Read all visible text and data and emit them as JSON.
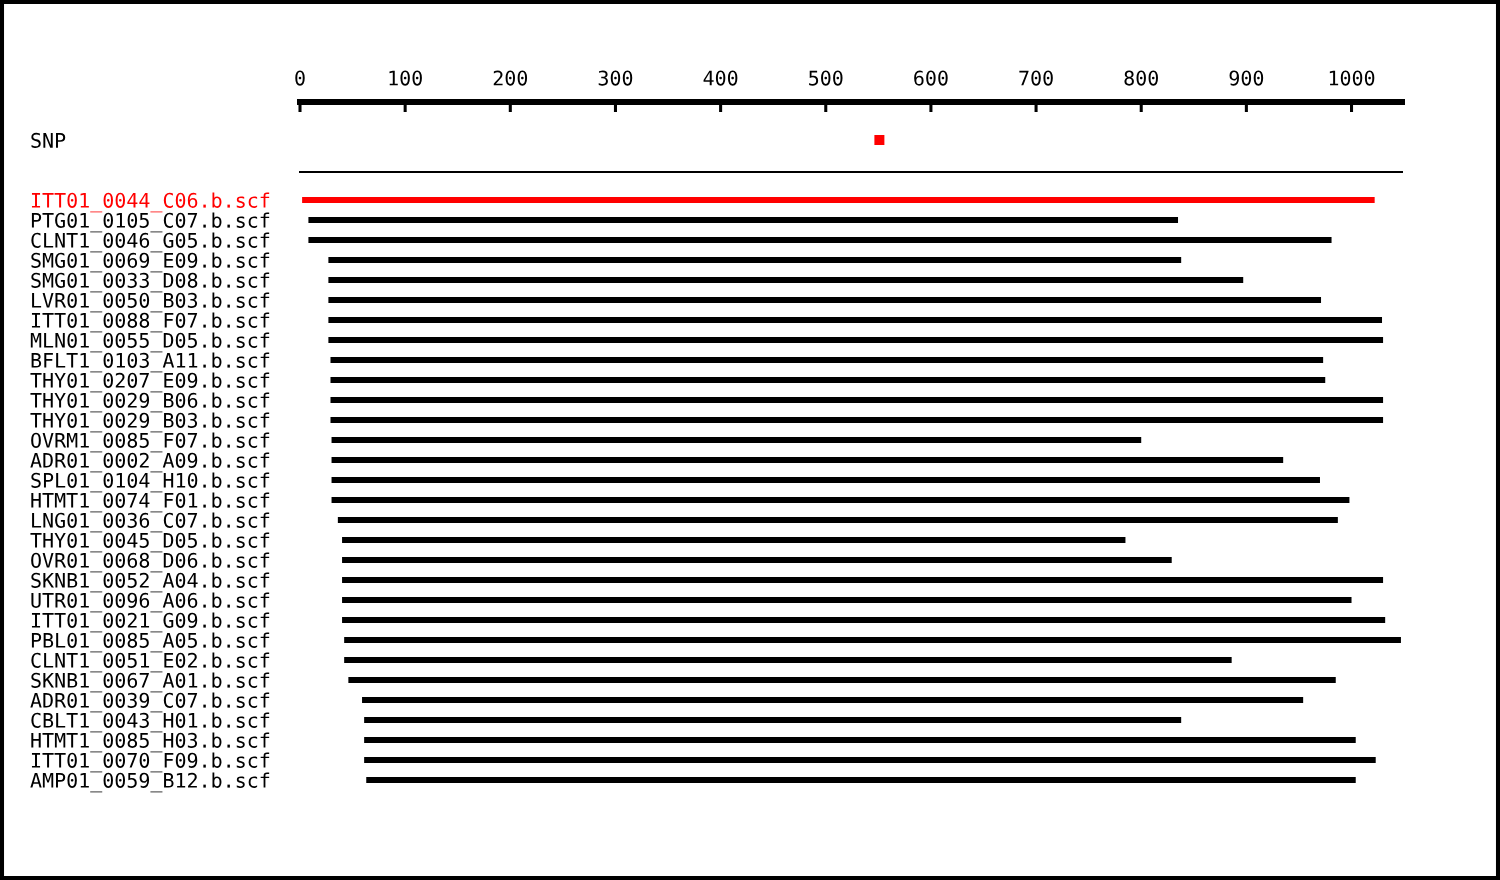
{
  "chart_data": {
    "type": "bar",
    "orientation": "horizontal",
    "categories": [
      "SNP",
      null,
      null,
      "ITT01_0044_C06.b.scf",
      "PTG01_0105_C07.b.scf",
      "CLNT1_0046_G05.b.scf",
      "SMG01_0069_E09.b.scf",
      "SMG01_0033_D08.b.scf",
      "LVR01_0050_B03.b.scf",
      "ITT01_0088_F07.b.scf",
      "MLN01_0055_D05.b.scf",
      "BFLT1_0103_A11.b.scf",
      "THY01_0207_E09.b.scf",
      "THY01_0029_B06.b.scf",
      "THY01_0029_B03.b.scf",
      "OVRM1_0085_F07.b.scf",
      "ADR01_0002_A09.b.scf",
      "SPL01_0104_H10.b.scf",
      "HTMT1_0074_F01.b.scf",
      "LNG01_0036_C07.b.scf",
      "THY01_0045_D05.b.scf",
      "OVR01_0068_D06.b.scf",
      "SKNB1_0052_A04.b.scf",
      "UTR01_0096_A06.b.scf",
      "ITT01_0021_G09.b.scf",
      "PBL01_0085_A05.b.scf",
      "CLNT1_0051_E02.b.scf",
      "SKNB1_0067_A01.b.scf",
      "ADR01_0039_C07.b.scf",
      "CBLT1_0043_H01.b.scf",
      "HTMT1_0085_H03.b.scf",
      "ITT01_0070_F09.b.scf",
      "AMP01_0059_B12.b.scf"
    ],
    "series": [
      {
        "type": "scatter",
        "values": [
          551,
          null,
          null,
          null,
          null,
          null,
          null,
          null,
          null,
          null,
          null,
          null,
          null,
          null,
          null,
          null,
          null,
          null,
          null,
          null,
          null,
          null,
          null,
          null,
          null,
          null,
          null,
          null,
          null,
          null,
          null,
          null,
          null
        ],
        "color": "#ff0000",
        "marker": "square",
        "axis": "x2"
      },
      {
        "values": [
          null,
          null,
          null,
          1020,
          827,
          973,
          811,
          870,
          944,
          1002,
          1003,
          944,
          946,
          1001,
          1001,
          770,
          905,
          940,
          968,
          951,
          745,
          789,
          990,
          960,
          992,
          1005,
          844,
          939,
          895,
          777,
          943,
          962,
          941
        ],
        "base": [
          null,
          null,
          null,
          2,
          8,
          8,
          27,
          27,
          27,
          27,
          27,
          29,
          29,
          29,
          29,
          30,
          30,
          30,
          30,
          36,
          40,
          40,
          40,
          40,
          40,
          42,
          42,
          46,
          59,
          61,
          61,
          61,
          63
        ],
        "colors": [
          "#000000",
          "#000000",
          "#000000",
          "#ff0000",
          "#000000",
          "#000000",
          "#000000",
          "#000000",
          "#000000",
          "#000000",
          "#000000",
          "#000000",
          "#000000",
          "#000000",
          "#000000",
          "#000000",
          "#000000",
          "#000000",
          "#000000",
          "#000000",
          "#000000",
          "#000000",
          "#000000",
          "#000000",
          "#000000",
          "#000000",
          "#000000",
          "#000000",
          "#000000",
          "#000000",
          "#000000",
          "#000000",
          "#000000"
        ],
        "axis": "x2"
      }
    ],
    "x2lim": [
      0,
      1048
    ],
    "x2ticks": [
      0,
      100,
      200,
      300,
      400,
      500,
      600,
      700,
      800,
      900,
      1000
    ],
    "grid": false
  }
}
